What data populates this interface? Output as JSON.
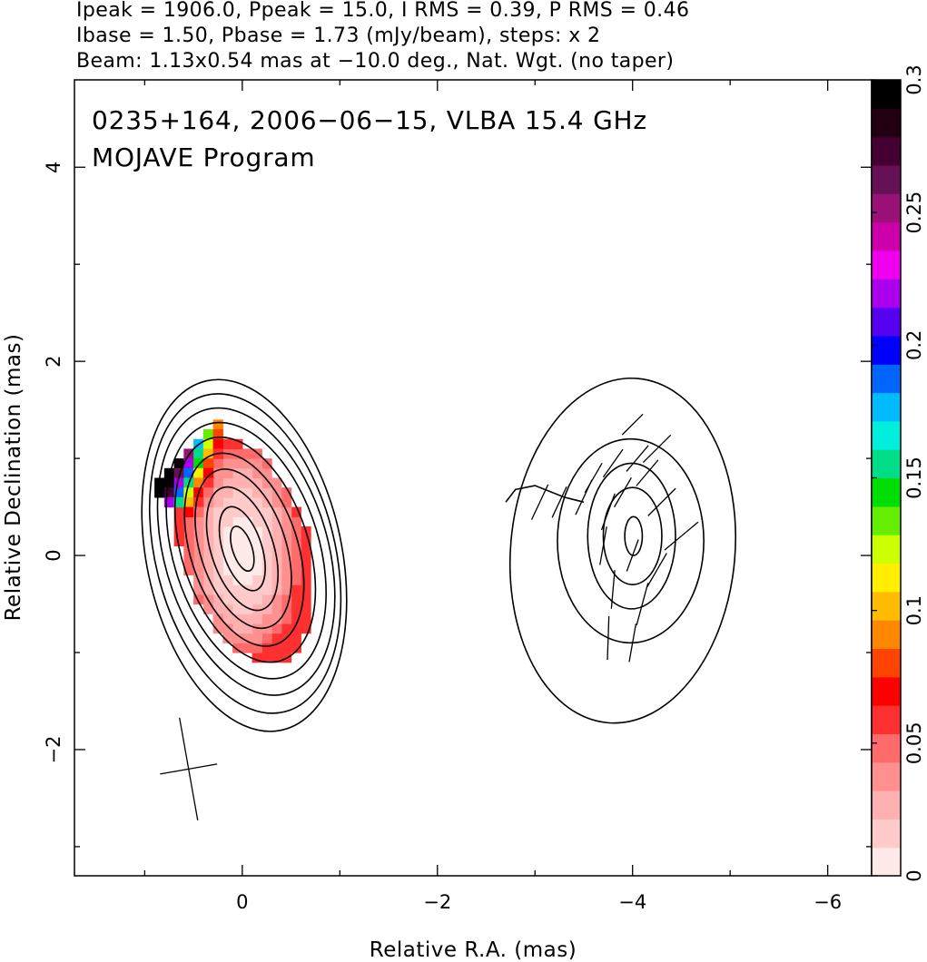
{
  "header": {
    "line1": "Ipeak = 1906.0, Ppeak = 15.0, I RMS = 0.39, P RMS = 0.46",
    "line2": "Ibase = 1.50, Pbase = 1.73 (mJy/beam), steps: x 2",
    "line3": "Beam: 1.13x0.54 mas at −10.0 deg., Nat. Wgt. (no taper)"
  },
  "plot_labels": {
    "source_line": "0235+164, 2006−06−15, VLBA 15.4 GHz",
    "program_line": "MOJAVE Program"
  },
  "chart_data": {
    "type": "heatmap",
    "title": "0235+164, 2006−06−15, VLBA 15.4 GHz",
    "subtitle": "MOJAVE Program",
    "xlabel": "Relative R.A. (mas)",
    "ylabel": "Relative Declination (mas)",
    "xlim": [
      1.72,
      -6.45
    ],
    "ylim": [
      -3.3,
      4.9
    ],
    "x_ticks": [
      0,
      -2,
      -4,
      -6
    ],
    "x_tick_labels": [
      "0",
      "−2",
      "−4",
      "−6"
    ],
    "y_ticks": [
      -2,
      0,
      2,
      4
    ],
    "y_tick_labels": [
      "−2",
      "0",
      "2",
      "4"
    ],
    "colorbar": {
      "range": [
        0,
        0.3
      ],
      "ticks": [
        0,
        0.05,
        0.1,
        0.15,
        0.2,
        0.25,
        0.3
      ],
      "tick_labels": [
        "0",
        "0.05",
        "0.1",
        "0.15",
        "0.2",
        "0.25",
        "0.3"
      ],
      "colors": [
        "#ffeaea",
        "#ffcaca",
        "#ffb0b0",
        "#ff9090",
        "#ff6a6a",
        "#ff3030",
        "#ff0000",
        "#ff4400",
        "#ff8800",
        "#ffbb00",
        "#ffee00",
        "#ccff00",
        "#66ee00",
        "#00dd00",
        "#00dd88",
        "#00eedd",
        "#00bbff",
        "#0066ff",
        "#0000ff",
        "#5500ee",
        "#aa00ee",
        "#ee00ee",
        "#cc00aa",
        "#991177",
        "#661155",
        "#440033",
        "#220011",
        "#000000"
      ]
    },
    "contour_levels_mJy": [
      1.5,
      3,
      6,
      12,
      24,
      48,
      96,
      192,
      384,
      768
    ],
    "core_contours": [
      {
        "ra": -0.02,
        "dec": 0.0,
        "a": 1.0,
        "b": 1.84,
        "angle": -12
      },
      {
        "ra": -0.03,
        "dec": 0.02,
        "a": 0.92,
        "b": 1.68,
        "angle": -14
      },
      {
        "ra": -0.04,
        "dec": 0.04,
        "a": 0.84,
        "b": 1.52,
        "angle": -16
      },
      {
        "ra": -0.04,
        "dec": 0.05,
        "a": 0.75,
        "b": 1.36,
        "angle": -17
      },
      {
        "ra": -0.03,
        "dec": 0.06,
        "a": 0.65,
        "b": 1.2,
        "angle": -18
      },
      {
        "ra": -0.02,
        "dec": 0.06,
        "a": 0.55,
        "b": 1.03,
        "angle": -18
      },
      {
        "ra": -0.01,
        "dec": 0.07,
        "a": 0.44,
        "b": 0.85,
        "angle": -18
      },
      {
        "ra": 0.0,
        "dec": 0.07,
        "a": 0.32,
        "b": 0.66,
        "angle": -18
      },
      {
        "ra": 0.0,
        "dec": 0.07,
        "a": 0.2,
        "b": 0.45,
        "angle": -18
      },
      {
        "ra": 0.0,
        "dec": 0.07,
        "a": 0.1,
        "b": 0.24,
        "angle": -18
      }
    ],
    "jet_contours": [
      {
        "ra": -3.9,
        "dec": 0.05,
        "a": 1.15,
        "b": 1.78,
        "angle": 5
      },
      {
        "ra": -3.98,
        "dec": 0.15,
        "a": 0.75,
        "b": 1.05,
        "angle": 0
      },
      {
        "ra": -3.99,
        "dec": 0.2,
        "a": 0.45,
        "b": 0.75,
        "angle": 0
      },
      {
        "ra": -4.0,
        "dec": 0.2,
        "a": 0.3,
        "b": 0.5,
        "angle": 0
      },
      {
        "ra": -4.01,
        "dec": 0.2,
        "a": 0.09,
        "b": 0.2,
        "angle": 0
      }
    ],
    "jet_knob_contour": [
      [
        -2.7,
        0.55
      ],
      [
        -2.8,
        0.68
      ],
      [
        -3.0,
        0.72
      ],
      [
        -3.3,
        0.6
      ],
      [
        -3.5,
        0.55
      ]
    ],
    "beam": {
      "major_mas": 1.13,
      "minor_mas": 0.54,
      "pa_deg": -10.0,
      "center_ra": 0.55,
      "center_dec": -2.2
    },
    "evpa_vectors": [
      {
        "ra": -3.05,
        "dec": 0.55,
        "angle": 65,
        "len": 0.4
      },
      {
        "ra": -3.25,
        "dec": 0.55,
        "angle": 65,
        "len": 0.35
      },
      {
        "ra": -3.5,
        "dec": 0.6,
        "angle": 65,
        "len": 0.4
      },
      {
        "ra": -3.6,
        "dec": 0.8,
        "angle": 60,
        "len": 0.35
      },
      {
        "ra": -3.8,
        "dec": 0.95,
        "angle": 55,
        "len": 0.35
      },
      {
        "ra": -4.05,
        "dec": 1.0,
        "angle": 50,
        "len": 0.35
      },
      {
        "ra": -4.25,
        "dec": 1.1,
        "angle": 45,
        "len": 0.4
      },
      {
        "ra": -4.0,
        "dec": 1.35,
        "angle": 45,
        "len": 0.3
      },
      {
        "ra": -4.15,
        "dec": 0.85,
        "angle": 50,
        "len": 0.35
      },
      {
        "ra": -3.75,
        "dec": 0.45,
        "angle": 70,
        "len": 0.4
      },
      {
        "ra": -3.9,
        "dec": 0.65,
        "angle": 60,
        "len": 0.35
      },
      {
        "ra": -4.3,
        "dec": 0.55,
        "angle": 45,
        "len": 0.4
      },
      {
        "ra": -4.5,
        "dec": 0.2,
        "angle": 40,
        "len": 0.45
      },
      {
        "ra": -3.7,
        "dec": 0.1,
        "angle": 80,
        "len": 0.4
      },
      {
        "ra": -4.0,
        "dec": 0.0,
        "angle": 70,
        "len": 0.35
      },
      {
        "ra": -4.25,
        "dec": -0.15,
        "angle": 60,
        "len": 0.4
      },
      {
        "ra": -3.8,
        "dec": -0.35,
        "angle": 85,
        "len": 0.4
      },
      {
        "ra": -4.1,
        "dec": -0.5,
        "angle": 75,
        "len": 0.45
      },
      {
        "ra": -3.75,
        "dec": -0.85,
        "angle": 88,
        "len": 0.45
      },
      {
        "ra": -4.0,
        "dec": -0.9,
        "angle": 80,
        "len": 0.4
      }
    ],
    "pol_pixels": [
      {
        "ra": 0.85,
        "dec": 0.75,
        "v": 0.3
      },
      {
        "ra": 0.85,
        "dec": 0.65,
        "v": 0.3
      },
      {
        "ra": 0.75,
        "dec": 0.85,
        "v": 0.3
      },
      {
        "ra": 0.75,
        "dec": 0.75,
        "v": 0.3
      },
      {
        "ra": 0.75,
        "dec": 0.65,
        "v": 0.27
      },
      {
        "ra": 0.75,
        "dec": 0.55,
        "v": 0.22
      },
      {
        "ra": 0.65,
        "dec": 0.95,
        "v": 0.3
      },
      {
        "ra": 0.65,
        "dec": 0.85,
        "v": 0.26
      },
      {
        "ra": 0.65,
        "dec": 0.75,
        "v": 0.22
      },
      {
        "ra": 0.65,
        "dec": 0.65,
        "v": 0.19
      },
      {
        "ra": 0.65,
        "dec": 0.55,
        "v": 0.15
      },
      {
        "ra": 0.55,
        "dec": 1.05,
        "v": 0.25
      },
      {
        "ra": 0.55,
        "dec": 0.95,
        "v": 0.22
      },
      {
        "ra": 0.55,
        "dec": 0.85,
        "v": 0.19
      },
      {
        "ra": 0.55,
        "dec": 0.75,
        "v": 0.15
      },
      {
        "ra": 0.55,
        "dec": 0.65,
        "v": 0.12
      },
      {
        "ra": 0.55,
        "dec": 0.55,
        "v": 0.1
      },
      {
        "ra": 0.55,
        "dec": 0.45,
        "v": 0.07
      },
      {
        "ra": 0.45,
        "dec": 1.15,
        "v": 0.18
      },
      {
        "ra": 0.45,
        "dec": 1.05,
        "v": 0.16
      },
      {
        "ra": 0.45,
        "dec": 0.95,
        "v": 0.14
      },
      {
        "ra": 0.45,
        "dec": 0.85,
        "v": 0.11
      },
      {
        "ra": 0.45,
        "dec": 0.75,
        "v": 0.09
      },
      {
        "ra": 0.45,
        "dec": 0.65,
        "v": 0.07
      },
      {
        "ra": 0.45,
        "dec": 0.55,
        "v": 0.06
      },
      {
        "ra": 0.45,
        "dec": 0.45,
        "v": 0.05
      },
      {
        "ra": 0.35,
        "dec": 1.25,
        "v": 0.13
      },
      {
        "ra": 0.35,
        "dec": 1.15,
        "v": 0.12
      },
      {
        "ra": 0.35,
        "dec": 1.05,
        "v": 0.1
      },
      {
        "ra": 0.35,
        "dec": 0.95,
        "v": 0.08
      },
      {
        "ra": 0.35,
        "dec": 0.85,
        "v": 0.07
      },
      {
        "ra": 0.35,
        "dec": 0.75,
        "v": 0.06
      },
      {
        "ra": 0.35,
        "dec": 0.65,
        "v": 0.05
      },
      {
        "ra": 0.25,
        "dec": 1.35,
        "v": 0.09
      },
      {
        "ra": 0.25,
        "dec": 1.25,
        "v": 0.08
      },
      {
        "ra": 0.25,
        "dec": 1.15,
        "v": 0.07
      },
      {
        "ra": 0.25,
        "dec": 1.05,
        "v": 0.06
      }
    ],
    "pol_region": {
      "ra_min": -0.65,
      "ra_max": 0.65,
      "dec_min": -1.15,
      "dec_max": 1.4
    }
  }
}
